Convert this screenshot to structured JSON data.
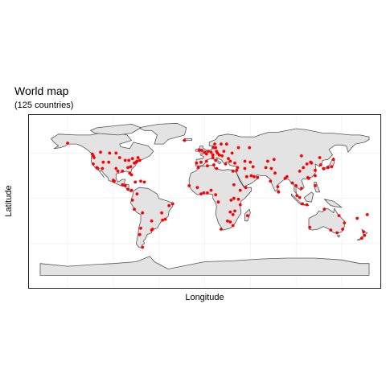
{
  "title": "World map",
  "subtitle": "(125 countries)",
  "chart_data": {
    "type": "scatter",
    "title": "World map",
    "subtitle": "(125 countries)",
    "xlabel": "Longitude",
    "ylabel": "Latitude",
    "xlim": [
      -180,
      180
    ],
    "ylim": [
      -90,
      85
    ],
    "grid": true,
    "colors": {
      "land": "#e3e3e3",
      "border": "#555555",
      "point": "#ff0000",
      "grid": "#ececec"
    },
    "points": [
      [
        -150,
        61
      ],
      [
        -123,
        49
      ],
      [
        -122,
        47
      ],
      [
        -121,
        45
      ],
      [
        -122,
        38
      ],
      [
        -118,
        34
      ],
      [
        -117,
        33
      ],
      [
        -112,
        33
      ],
      [
        -111,
        40
      ],
      [
        -105,
        40
      ],
      [
        -97,
        33
      ],
      [
        -95,
        30
      ],
      [
        -90,
        30
      ],
      [
        -84,
        34
      ],
      [
        -82,
        28
      ],
      [
        -80,
        26
      ],
      [
        -81,
        35
      ],
      [
        -77,
        39
      ],
      [
        -75,
        40
      ],
      [
        -74,
        41
      ],
      [
        -71,
        42
      ],
      [
        -73,
        45
      ],
      [
        -79,
        44
      ],
      [
        -83,
        42
      ],
      [
        -87,
        42
      ],
      [
        -93,
        45
      ],
      [
        -97,
        50
      ],
      [
        -104,
        50
      ],
      [
        -114,
        51
      ],
      [
        -100,
        20
      ],
      [
        -99,
        19
      ],
      [
        -90,
        15
      ],
      [
        -87,
        14
      ],
      [
        -84,
        10
      ],
      [
        -80,
        9
      ],
      [
        -76,
        18
      ],
      [
        -70,
        19
      ],
      [
        -66,
        18
      ],
      [
        -74,
        5
      ],
      [
        -79,
        -2
      ],
      [
        -77,
        -12
      ],
      [
        -68,
        -16
      ],
      [
        -58,
        -25
      ],
      [
        -47,
        -16
      ],
      [
        -43,
        -23
      ],
      [
        -46,
        -24
      ],
      [
        -39,
        -8
      ],
      [
        -35,
        -6
      ],
      [
        -57,
        -34
      ],
      [
        -58,
        -35
      ],
      [
        -70,
        -33
      ],
      [
        -71,
        -40
      ],
      [
        -68,
        -54
      ],
      [
        -22,
        64
      ],
      [
        -9,
        39
      ],
      [
        -4,
        40
      ],
      [
        2,
        41
      ],
      [
        2,
        49
      ],
      [
        0,
        51
      ],
      [
        -3,
        53
      ],
      [
        -6,
        53
      ],
      [
        4,
        52
      ],
      [
        7,
        51
      ],
      [
        9,
        48
      ],
      [
        13,
        52
      ],
      [
        10,
        56
      ],
      [
        12,
        56
      ],
      [
        18,
        60
      ],
      [
        24,
        60
      ],
      [
        11,
        60
      ],
      [
        21,
        52
      ],
      [
        19,
        47
      ],
      [
        14,
        50
      ],
      [
        12,
        42
      ],
      [
        9,
        45
      ],
      [
        16,
        48
      ],
      [
        23,
        38
      ],
      [
        28,
        41
      ],
      [
        33,
        39
      ],
      [
        26,
        44
      ],
      [
        30,
        50
      ],
      [
        37,
        56
      ],
      [
        49,
        56
      ],
      [
        44,
        41
      ],
      [
        50,
        40
      ],
      [
        69,
        41
      ],
      [
        76,
        43
      ],
      [
        35,
        31
      ],
      [
        36,
        34
      ],
      [
        44,
        33
      ],
      [
        46,
        24
      ],
      [
        51,
        25
      ],
      [
        54,
        24
      ],
      [
        58,
        23
      ],
      [
        53,
        35
      ],
      [
        67,
        34
      ],
      [
        73,
        33
      ],
      [
        77,
        28
      ],
      [
        72,
        19
      ],
      [
        80,
        13
      ],
      [
        88,
        22
      ],
      [
        81,
        7
      ],
      [
        90,
        24
      ],
      [
        96,
        17
      ],
      [
        100,
        14
      ],
      [
        106,
        11
      ],
      [
        101,
        3
      ],
      [
        104,
        1
      ],
      [
        107,
        -6
      ],
      [
        112,
        -7
      ],
      [
        121,
        14
      ],
      [
        121,
        25
      ],
      [
        127,
        37
      ],
      [
        116,
        40
      ],
      [
        117,
        39
      ],
      [
        121,
        31
      ],
      [
        126,
        45
      ],
      [
        113,
        23
      ],
      [
        114,
        22
      ],
      [
        104,
        30
      ],
      [
        108,
        34
      ],
      [
        112,
        38
      ],
      [
        106,
        47
      ],
      [
        139,
        35
      ],
      [
        135,
        34
      ],
      [
        141,
        43
      ],
      [
        130,
        33
      ],
      [
        -17,
        14
      ],
      [
        -8,
        12
      ],
      [
        -4,
        5
      ],
      [
        -1,
        6
      ],
      [
        3,
        6
      ],
      [
        7,
        9
      ],
      [
        12,
        4
      ],
      [
        15,
        -4
      ],
      [
        29,
        -2
      ],
      [
        32,
        0
      ],
      [
        37,
        -1
      ],
      [
        39,
        -7
      ],
      [
        33,
        -14
      ],
      [
        28,
        -15
      ],
      [
        31,
        -18
      ],
      [
        28,
        -26
      ],
      [
        18,
        -34
      ],
      [
        31,
        -30
      ],
      [
        25,
        -25
      ],
      [
        47,
        -19
      ],
      [
        45,
        12
      ],
      [
        39,
        9
      ],
      [
        32,
        15
      ],
      [
        31,
        30
      ],
      [
        10,
        37
      ],
      [
        3,
        36
      ],
      [
        -7,
        34
      ],
      [
        13,
        33
      ],
      [
        115,
        -32
      ],
      [
        138,
        -35
      ],
      [
        145,
        -38
      ],
      [
        151,
        -34
      ],
      [
        153,
        -27
      ],
      [
        147,
        -19
      ],
      [
        131,
        -12
      ],
      [
        174,
        -37
      ],
      [
        175,
        -41
      ],
      [
        172,
        -44
      ],
      [
        167,
        -22
      ],
      [
        178,
        -18
      ]
    ]
  }
}
